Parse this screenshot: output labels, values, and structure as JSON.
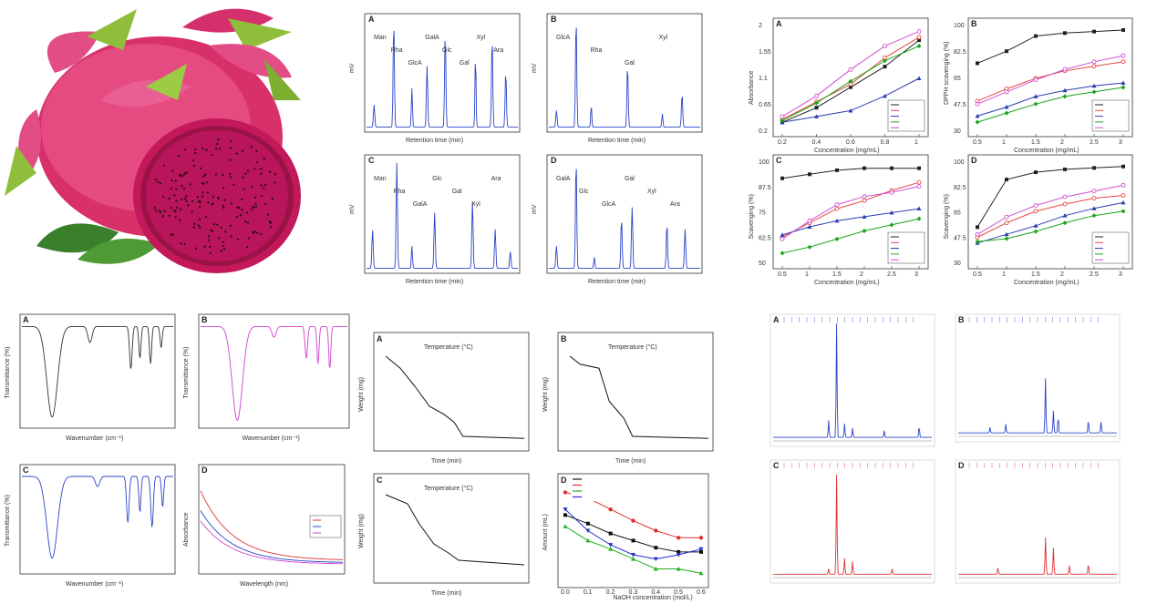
{
  "figure": {
    "fruit_photo_alt": "dragon-fruit-photo"
  },
  "panels": {
    "hplc": [
      {
        "label": "A",
        "ylabel": "mV",
        "xlabel": "Retention time (min)",
        "peaks_text": [
          "Man",
          "Rha",
          "GlcA",
          "GalA",
          "Glc",
          "Gal",
          "Xyl",
          "Ara"
        ]
      },
      {
        "label": "B",
        "ylabel": "mV",
        "xlabel": "Retention time (min)",
        "peaks_text": [
          "GlcA",
          "Rha",
          "Gal",
          "Xyl"
        ]
      },
      {
        "label": "C",
        "ylabel": "mV",
        "xlabel": "Retention time (min)",
        "peaks_text": [
          "Man",
          "Rha",
          "GalA",
          "Glc",
          "Gal",
          "Xyl",
          "Ara"
        ]
      },
      {
        "label": "D",
        "ylabel": "mV",
        "xlabel": "Retention time (min)",
        "peaks_text": [
          "GalA",
          "Glc",
          "GlcA",
          "Gal",
          "Xyl",
          "Ara"
        ]
      }
    ],
    "ftir": [
      {
        "label": "A",
        "ylabel": "Transmittance (%)",
        "xlabel": "Wavenumber (cm⁻¹)"
      },
      {
        "label": "B",
        "ylabel": "Transmittance (%)",
        "xlabel": "Wavenumber (cm⁻¹)"
      },
      {
        "label": "C",
        "ylabel": "Transmittance (%)",
        "xlabel": "Wavenumber (cm⁻¹)"
      },
      {
        "label": "D",
        "ylabel": "Absorbance",
        "xlabel": "Wavelength (nm)"
      }
    ],
    "tga": [
      {
        "label": "A",
        "ylabel": "Weight (mg)",
        "xlabel": "Time (min)",
        "top_axis": "Temperature (°C)"
      },
      {
        "label": "B",
        "ylabel": "Weight (mg)",
        "xlabel": "Time (min)",
        "top_axis": "Temperature (°C)"
      },
      {
        "label": "C",
        "ylabel": "Weight (mg)",
        "xlabel": "Time (min)",
        "top_axis": "Temperature (°C)"
      },
      {
        "label": "D",
        "ylabel": "Amount (mL)",
        "xlabel": "NaOH concentration (mol/L)"
      }
    ],
    "nmr": [
      {
        "label": "A"
      },
      {
        "label": "B"
      },
      {
        "label": "C"
      },
      {
        "label": "D"
      }
    ]
  },
  "chart_data": [
    {
      "type": "line",
      "panel": "A",
      "xlabel": "Concentration (mg/mL)",
      "ylabel": "Absorbance",
      "x": [
        0.2,
        0.4,
        0.6,
        0.8,
        1.0
      ],
      "ylim": [
        0.2,
        2.0
      ],
      "colors": [
        "#222222",
        "#e8473f",
        "#2a3db0",
        "#1aa41a",
        "#d050d0"
      ],
      "series": [
        {
          "values": [
            0.35,
            0.6,
            0.95,
            1.3,
            1.75
          ]
        },
        {
          "values": [
            0.4,
            0.7,
            1.0,
            1.45,
            1.8
          ]
        },
        {
          "values": [
            0.35,
            0.45,
            0.55,
            0.8,
            1.1
          ]
        },
        {
          "values": [
            0.38,
            0.68,
            1.05,
            1.4,
            1.65
          ]
        },
        {
          "values": [
            0.45,
            0.8,
            1.25,
            1.65,
            1.9
          ]
        }
      ]
    },
    {
      "type": "line",
      "panel": "B",
      "xlabel": "Concentration (mg/mL)",
      "ylabel": "DPPH scavenging (%)",
      "x": [
        0.5,
        1.0,
        1.5,
        2.0,
        2.5,
        3.0
      ],
      "ylim": [
        30,
        100
      ],
      "colors": [
        "#222222",
        "#e8473f",
        "#2a3db0",
        "#1aa41a",
        "#d050d0"
      ],
      "series": [
        {
          "values": [
            75,
            83,
            93,
            95,
            96,
            97
          ]
        },
        {
          "values": [
            50,
            58,
            65,
            70,
            73,
            76
          ]
        },
        {
          "values": [
            40,
            46,
            53,
            57,
            60,
            62
          ]
        },
        {
          "values": [
            36,
            42,
            48,
            53,
            56,
            59
          ]
        },
        {
          "values": [
            48,
            56,
            64,
            71,
            76,
            80
          ]
        }
      ]
    },
    {
      "type": "line",
      "panel": "C",
      "xlabel": "Concentration (mg/mL)",
      "ylabel": "Scavenging (%)",
      "x": [
        0.5,
        1.0,
        1.5,
        2.0,
        2.5,
        3.0
      ],
      "ylim": [
        50,
        100
      ],
      "colors": [
        "#222222",
        "#e8473f",
        "#2a3db0",
        "#1aa41a",
        "#d050d0"
      ],
      "series": [
        {
          "values": [
            92,
            94,
            96,
            97,
            97,
            97
          ]
        },
        {
          "values": [
            63,
            70,
            77,
            81,
            86,
            90
          ]
        },
        {
          "values": [
            64,
            68,
            71,
            73,
            75,
            77
          ]
        },
        {
          "values": [
            55,
            58,
            62,
            66,
            69,
            72
          ]
        },
        {
          "values": [
            62,
            71,
            79,
            83,
            85,
            88
          ]
        }
      ]
    },
    {
      "type": "line",
      "panel": "D",
      "xlabel": "Concentration (mg/mL)",
      "ylabel": "Scavenging (%)",
      "x": [
        0.5,
        1.0,
        1.5,
        2.0,
        2.5,
        3.0
      ],
      "ylim": [
        30,
        100
      ],
      "colors": [
        "#222222",
        "#e8473f",
        "#2a3db0",
        "#1aa41a",
        "#d050d0"
      ],
      "series": [
        {
          "values": [
            55,
            88,
            93,
            95,
            96,
            97
          ]
        },
        {
          "values": [
            48,
            58,
            66,
            71,
            75,
            77
          ]
        },
        {
          "values": [
            44,
            50,
            56,
            63,
            68,
            72
          ]
        },
        {
          "values": [
            45,
            47,
            52,
            58,
            63,
            66
          ]
        },
        {
          "values": [
            50,
            62,
            70,
            76,
            80,
            84
          ]
        }
      ]
    },
    {
      "type": "line",
      "panel": "D-amount",
      "xlabel": "NaOH concentration (mol/L)",
      "ylabel": "Amount (mL)",
      "x": [
        0.0,
        0.1,
        0.2,
        0.3,
        0.4,
        0.5,
        0.6
      ],
      "colors": [
        "#111111",
        "#e03030",
        "#20b020",
        "#2030d0"
      ],
      "series": [
        {
          "values": [
            0.86,
            0.8,
            0.73,
            0.68,
            0.63,
            0.6,
            0.6
          ]
        },
        {
          "values": [
            1.02,
            0.98,
            0.9,
            0.82,
            0.75,
            0.7,
            0.7
          ]
        },
        {
          "values": [
            0.78,
            0.68,
            0.62,
            0.55,
            0.48,
            0.48,
            0.45
          ]
        },
        {
          "values": [
            0.9,
            0.75,
            0.65,
            0.58,
            0.55,
            0.58,
            0.62
          ]
        }
      ]
    }
  ]
}
